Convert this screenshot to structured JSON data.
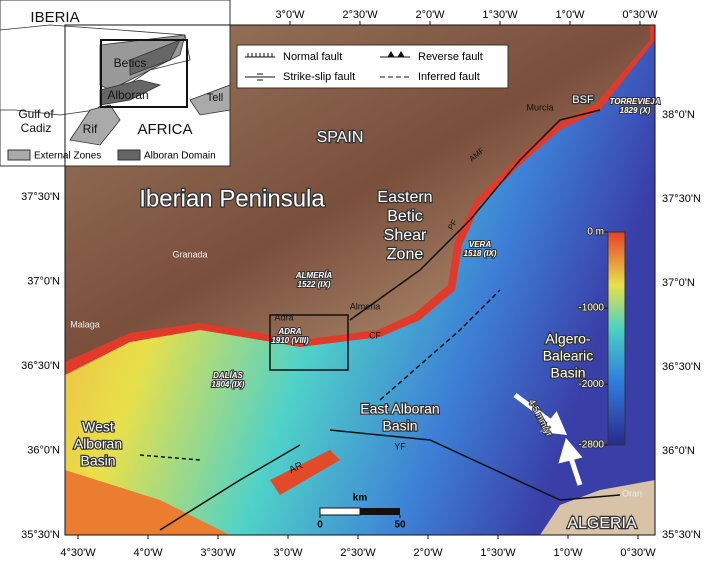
{
  "inset": {
    "labels": [
      [
        "IBERIA"
      ],
      [
        "Betics"
      ],
      [
        "Alboran"
      ],
      [
        "Tell"
      ],
      [
        "Gulf of",
        "Cadiz"
      ],
      [
        "Rif"
      ],
      [
        "AFRICA"
      ]
    ],
    "legend": [
      "External Zones",
      "Alboran Domain"
    ]
  },
  "legend": {
    "items": [
      "Normal fault",
      "Strike-slip fault",
      "Reverse fault",
      "Inferred fault"
    ]
  },
  "map_labels": [
    [
      "SPAIN"
    ],
    [
      "Iberian Peninsula"
    ],
    [
      "Eastern",
      "Betic",
      "Shear",
      "Zone"
    ],
    [
      "Murcia"
    ],
    [
      "BSF"
    ],
    [
      "TORREVIEJA",
      "1829 (X)"
    ],
    [
      "AMF"
    ],
    [
      "PF"
    ],
    [
      "VERA",
      "1518 (IX)"
    ],
    [
      "Granada"
    ],
    [
      "ALMERÍA",
      "1522 (IX)"
    ],
    [
      "Almeria"
    ],
    [
      "Adra"
    ],
    [
      "ADRA",
      "1910 (VIII)"
    ],
    [
      "CF"
    ],
    [
      "Malaga"
    ],
    [
      "DALÍAS",
      "1804 (IX)"
    ],
    [
      "West",
      "Alboran",
      "Basin"
    ],
    [
      "East Alboran",
      "Basin"
    ],
    [
      "YF"
    ],
    [
      "AR"
    ],
    [
      "Algero-",
      "Balearic",
      "Basin"
    ],
    [
      "4-5 mm/yr"
    ],
    [
      "ALGERIA"
    ],
    [
      "Oran"
    ]
  ],
  "axes": {
    "top": [
      "3°0'W",
      "2°30'W",
      "2°0'W",
      "1°30'W",
      "1°0'W",
      "0°30'W"
    ],
    "bottom": [
      "4°30'W",
      "4°0'W",
      "3°30'W",
      "3°0'W",
      "2°30'W",
      "2°0'W",
      "1°30'W",
      "1°0'W",
      "0°30'W"
    ],
    "left": [
      "37°30'N",
      "37°0'N",
      "36°30'N",
      "36°0'N",
      "35°30'N"
    ],
    "right": [
      "38°0'N",
      "37°30'N",
      "37°0'N",
      "36°30'N",
      "36°0'N",
      "35°30'N"
    ]
  },
  "colorbar": {
    "ticks": [
      {
        "value": 0,
        "label": "0 m"
      },
      -1000,
      -2000,
      -2800
    ]
  },
  "scale_bar": {
    "title": "km",
    "ticks": [
      0,
      50
    ]
  }
}
